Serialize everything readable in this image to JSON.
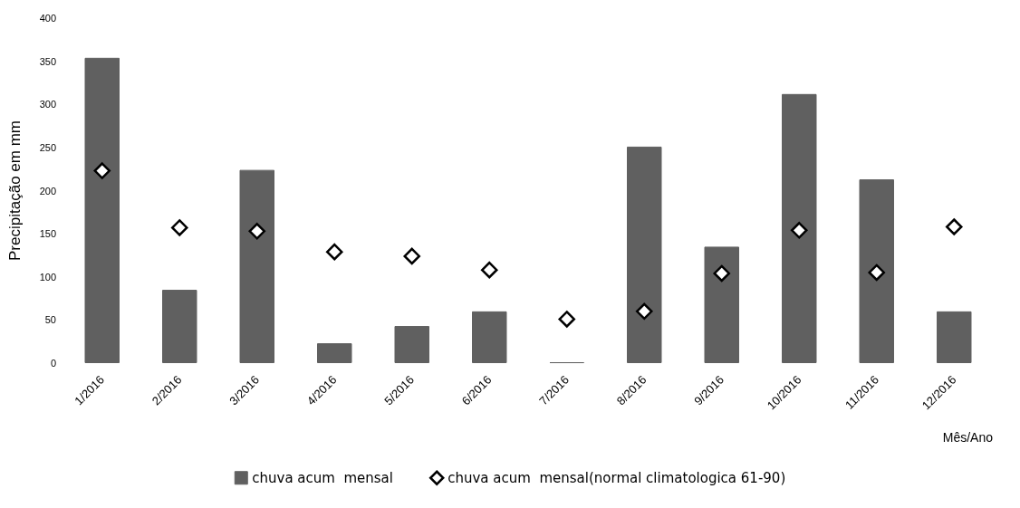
{
  "chart_data": {
    "type": "bar",
    "xlabel": "Mês/Ano",
    "ylabel": "Precipitação em mm",
    "categories": [
      "1/2016",
      "2/2016",
      "3/2016",
      "4/2016",
      "5/2016",
      "6/2016",
      "7/2016",
      "8/2016",
      "9/2016",
      "10/2016",
      "11/2016",
      "12/2016"
    ],
    "series": [
      {
        "name": "chuva acum  mensal",
        "color": "#606060",
        "values": [
          354,
          85,
          224,
          23,
          43,
          60,
          1,
          251,
          135,
          312,
          213,
          60
        ]
      },
      {
        "name": "chuva acum  mensal(normal climatologica 61-90)",
        "type": "scatter",
        "marker": "diamond",
        "color": "#000000",
        "values": [
          223,
          157,
          153,
          129,
          124,
          108,
          51,
          60,
          104,
          154,
          105,
          158
        ]
      }
    ],
    "ylim": [
      0,
      400
    ],
    "yticks": [
      0,
      50,
      100,
      150,
      200,
      250,
      300,
      350,
      400
    ],
    "grid": false,
    "legend": "bottom"
  }
}
